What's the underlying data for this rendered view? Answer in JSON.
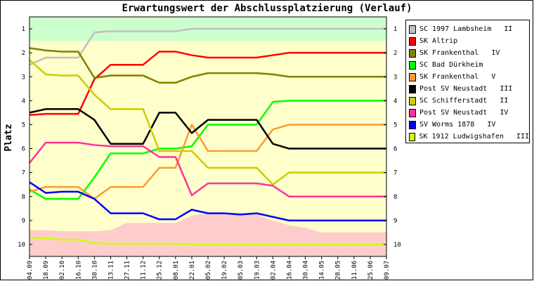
{
  "chart_data": {
    "type": "line",
    "title": "Erwartungswert der Abschlussplatzierung (Verlauf)",
    "xlabel": "",
    "ylabel": "Platz",
    "ylim": [
      10.5,
      0.5
    ],
    "yticks": [
      1,
      2,
      3,
      4,
      5,
      6,
      7,
      8,
      9,
      10
    ],
    "categories": [
      "04.09",
      "18.09",
      "02.10",
      "16.10",
      "30.10",
      "13.11",
      "27.11",
      "11.12",
      "25.12",
      "08.01",
      "22.01",
      "05.02",
      "19.02",
      "05.03",
      "19.03",
      "02.04",
      "16.04",
      "30.04",
      "14.05",
      "28.05",
      "11.06",
      "25.06",
      "09.07"
    ],
    "legend_position": "right",
    "background_bands": [
      {
        "name": "top",
        "color": "#ccffcc",
        "range": [
          0.5,
          1.5
        ]
      },
      {
        "name": "middle",
        "color": "#ffffcc",
        "range": [
          1.5,
          9.5
        ]
      },
      {
        "name": "bottom",
        "color": "#ffcccc",
        "range": [
          9.5,
          10.5
        ]
      }
    ],
    "series": [
      {
        "name": "SC 1997 Lambsheim   II",
        "color": "#c0c0c0",
        "values": [
          2.5,
          2.2,
          2.2,
          2.2,
          1.15,
          1.1,
          1.1,
          1.1,
          1.1,
          1.1,
          1.0,
          1.0,
          1.0,
          1.0,
          1.0,
          1.0,
          1.0,
          1.0,
          1.0,
          1.0,
          1.0,
          1.0,
          1.0
        ]
      },
      {
        "name": "SK Altrip",
        "color": "#ff0000",
        "values": [
          4.6,
          4.55,
          4.55,
          4.55,
          3.1,
          2.5,
          2.5,
          2.5,
          1.95,
          1.95,
          2.1,
          2.2,
          2.2,
          2.2,
          2.2,
          2.1,
          2.0,
          2.0,
          2.0,
          2.0,
          2.0,
          2.0,
          2.0
        ]
      },
      {
        "name": "SK Frankenthal   IV",
        "color": "#808000",
        "values": [
          1.8,
          1.9,
          1.95,
          1.95,
          3.05,
          2.95,
          2.95,
          2.95,
          3.25,
          3.25,
          3.0,
          2.85,
          2.85,
          2.85,
          2.85,
          2.9,
          3.0,
          3.0,
          3.0,
          3.0,
          3.0,
          3.0,
          3.0
        ]
      },
      {
        "name": "SC Bad Dürkheim",
        "color": "#00ff00",
        "values": [
          7.7,
          8.1,
          8.1,
          8.1,
          7.2,
          6.2,
          6.2,
          6.2,
          6.0,
          6.0,
          5.9,
          5.0,
          5.0,
          5.0,
          5.0,
          4.05,
          4.0,
          4.0,
          4.0,
          4.0,
          4.0,
          4.0,
          4.0
        ]
      },
      {
        "name": "SK Frankenthal   V",
        "color": "#ff9933",
        "values": [
          7.8,
          7.6,
          7.6,
          7.6,
          8.1,
          7.6,
          7.6,
          7.6,
          6.8,
          6.8,
          5.0,
          6.1,
          6.1,
          6.1,
          6.1,
          5.2,
          5.0,
          5.0,
          5.0,
          5.0,
          5.0,
          5.0,
          5.0
        ]
      },
      {
        "name": "Post SV Neustadt   III",
        "color": "#000000",
        "values": [
          4.5,
          4.35,
          4.35,
          4.35,
          4.8,
          5.8,
          5.8,
          5.8,
          4.5,
          4.5,
          5.35,
          4.8,
          4.8,
          4.8,
          4.8,
          5.8,
          6.0,
          6.0,
          6.0,
          6.0,
          6.0,
          6.0,
          6.0
        ]
      },
      {
        "name": "SC Schifferstadt   II",
        "color": "#cccc00",
        "values": [
          2.3,
          2.9,
          2.95,
          2.95,
          3.75,
          4.35,
          4.35,
          4.35,
          6.1,
          6.1,
          6.1,
          6.8,
          6.8,
          6.8,
          6.8,
          7.5,
          7.0,
          7.0,
          7.0,
          7.0,
          7.0,
          7.0,
          7.0
        ]
      },
      {
        "name": "Post SV Neustadt   IV",
        "color": "#ff3399",
        "values": [
          6.6,
          5.75,
          5.75,
          5.75,
          5.85,
          5.9,
          5.9,
          5.9,
          6.35,
          6.35,
          7.95,
          7.45,
          7.45,
          7.45,
          7.45,
          7.55,
          8.0,
          8.0,
          8.0,
          8.0,
          8.0,
          8.0,
          8.0
        ]
      },
      {
        "name": "SV Worms 1878   IV",
        "color": "#0000ff",
        "values": [
          7.4,
          7.85,
          7.8,
          7.8,
          8.1,
          8.7,
          8.7,
          8.7,
          8.95,
          8.95,
          8.55,
          8.7,
          8.7,
          8.75,
          8.7,
          8.85,
          9.0,
          9.0,
          9.0,
          9.0,
          9.0,
          9.0,
          9.0
        ]
      },
      {
        "name": "SK 1912 Ludwigshafen   III",
        "color": "#ccff00",
        "values": [
          9.7,
          9.75,
          9.8,
          9.8,
          9.95,
          9.97,
          9.97,
          9.97,
          9.97,
          9.97,
          10.0,
          10.0,
          10.0,
          10.0,
          10.0,
          10.0,
          10.0,
          10.0,
          10.0,
          10.0,
          10.0,
          10.0,
          10.0
        ]
      }
    ],
    "bottom_area": {
      "color": "#ffcccc",
      "values": [
        9.4,
        9.4,
        9.45,
        9.45,
        9.45,
        9.4,
        9.1,
        9.1,
        9.1,
        9.1,
        8.8,
        8.7,
        8.7,
        8.75,
        8.75,
        9.0,
        9.2,
        9.3,
        9.5,
        9.55,
        9.55,
        9.55,
        9.55
      ]
    }
  }
}
